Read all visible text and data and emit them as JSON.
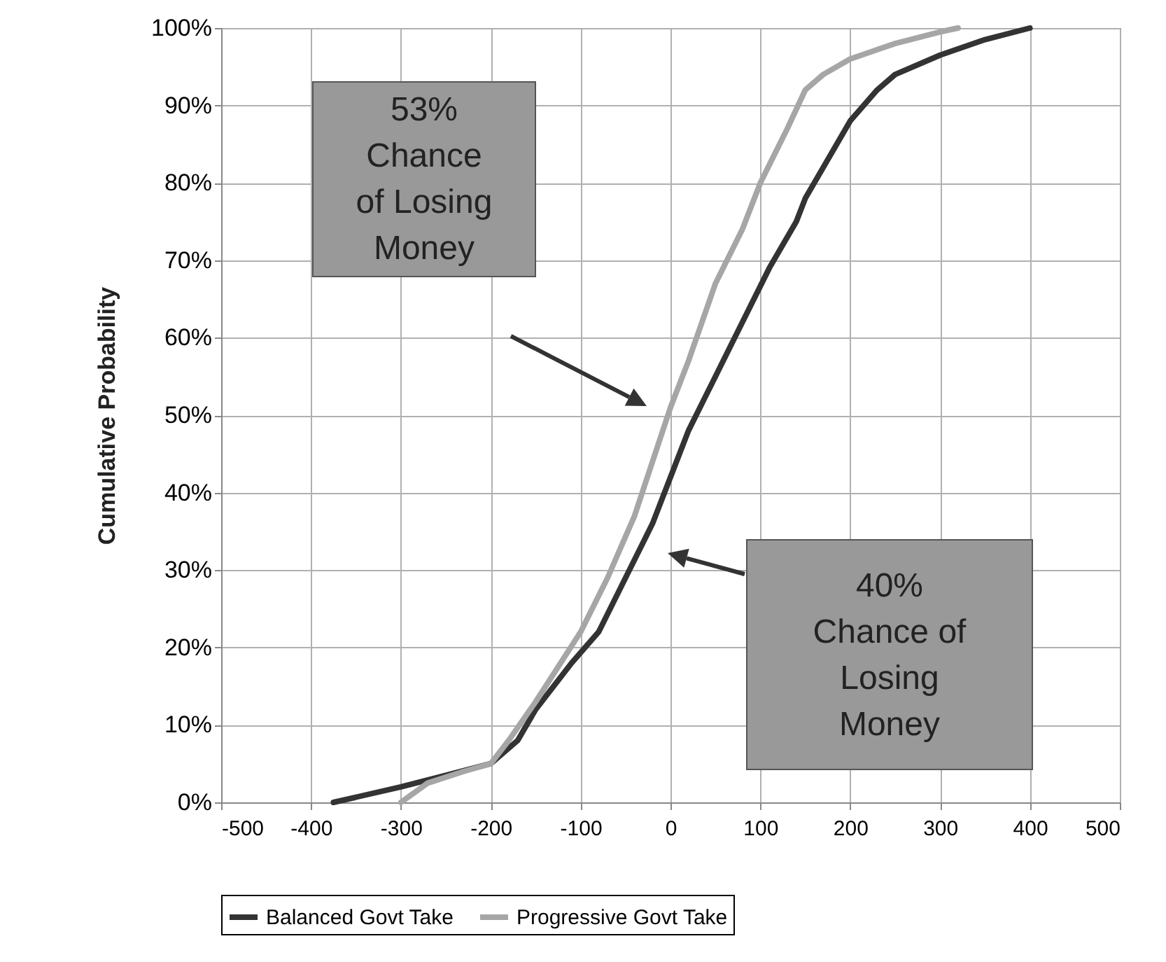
{
  "chart_data": {
    "type": "line",
    "ylabel": "Cumulative Probability",
    "xlim": [
      -500,
      500
    ],
    "xticks": [
      -500,
      -400,
      -300,
      -200,
      -100,
      0,
      100,
      200,
      300,
      400,
      500
    ],
    "ylim": [
      0,
      100
    ],
    "yticks": [
      {
        "value": 0,
        "label": "0%"
      },
      {
        "value": 10,
        "label": "10%"
      },
      {
        "value": 20,
        "label": "20%"
      },
      {
        "value": 30,
        "label": "30%"
      },
      {
        "value": 40,
        "label": "40%"
      },
      {
        "value": 50,
        "label": "50%"
      },
      {
        "value": 60,
        "label": "60%"
      },
      {
        "value": 70,
        "label": "70%"
      },
      {
        "value": 80,
        "label": "80%"
      },
      {
        "value": 90,
        "label": "90%"
      },
      {
        "value": 100,
        "label": "100%"
      }
    ],
    "grid": true,
    "legend": "bottom",
    "marker": "none",
    "line_style": "solid",
    "series": [
      {
        "name": "Balanced Govt Take",
        "color": "#333333",
        "x": [
          -375,
          -300,
          -250,
          -200,
          -170,
          -150,
          -110,
          -80,
          -50,
          -20,
          0,
          20,
          50,
          80,
          110,
          140,
          150,
          180,
          200,
          230,
          250,
          300,
          350,
          400
        ],
        "values": [
          0,
          2,
          3.5,
          5,
          8,
          12,
          18,
          22,
          29,
          36,
          42,
          48,
          55,
          62,
          69,
          75,
          78,
          84,
          88,
          92,
          94,
          96.5,
          98.5,
          100
        ]
      },
      {
        "name": "Progressive Govt Take",
        "color": "#a6a6a6",
        "x": [
          -300,
          -270,
          -230,
          -200,
          -180,
          -150,
          -100,
          -70,
          -40,
          -20,
          0,
          20,
          50,
          80,
          100,
          130,
          150,
          170,
          200,
          250,
          300,
          320
        ],
        "values": [
          0,
          2.5,
          4,
          5,
          8,
          13,
          22,
          29,
          37,
          44,
          51,
          57,
          67,
          74,
          80,
          87,
          92,
          94,
          96,
          98,
          99.5,
          100
        ]
      }
    ],
    "annotations": [
      "53%\nChance\nof Losing\nMoney",
      "40%\nChance of\nLosing\nMoney"
    ]
  }
}
